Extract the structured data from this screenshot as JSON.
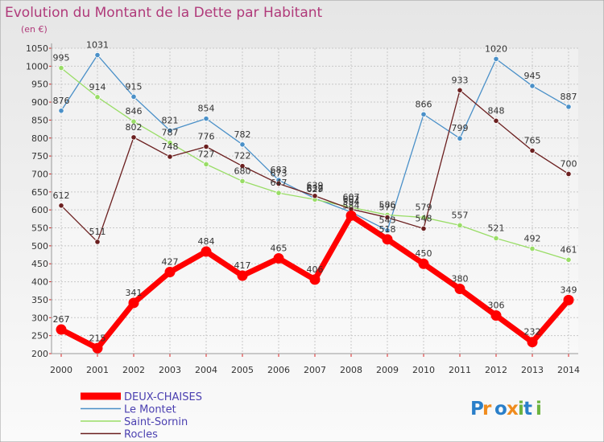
{
  "chart_data": {
    "type": "line",
    "title": "Evolution du Montant de la Dette par Habitant",
    "unit": "(en €)",
    "categories": [
      "2000",
      "2001",
      "2002",
      "2003",
      "2004",
      "2005",
      "2006",
      "2007",
      "2008",
      "2009",
      "2010",
      "2011",
      "2012",
      "2013",
      "2014"
    ],
    "ylim": [
      200,
      1050
    ],
    "yticks": [
      200,
      250,
      300,
      350,
      400,
      450,
      500,
      550,
      600,
      650,
      700,
      750,
      800,
      850,
      900,
      950,
      1000,
      1050
    ],
    "grid": true,
    "legend_position": "bottom-left",
    "series": [
      {
        "name": "DEUX-CHAISES",
        "color": "#ff0000",
        "values": [
          267,
          215,
          341,
          427,
          484,
          417,
          465,
          406,
          584,
          518,
          450,
          380,
          306,
          232,
          349
        ],
        "labels": [
          "267",
          "215",
          "341",
          "427",
          "484",
          "417",
          "465",
          "406",
          "584",
          "518",
          "450",
          "380",
          "306",
          "232",
          "349"
        ]
      },
      {
        "name": "Le Montet",
        "color": "#4a90c8",
        "values": [
          876,
          1031,
          915,
          821,
          854,
          782,
          683,
          632,
          594,
          543,
          866,
          799,
          1020,
          945,
          887
        ],
        "labels": [
          "876",
          "1031",
          "915",
          "821",
          "854",
          "782",
          "683",
          "632",
          "594",
          "543",
          "866",
          "799",
          "1020",
          "945",
          "887"
        ]
      },
      {
        "name": "Saint-Sornin",
        "color": "#99dd66",
        "values": [
          995,
          914,
          846,
          787,
          727,
          680,
          647,
          629,
          607,
          586,
          579,
          557,
          521,
          492,
          461
        ],
        "labels": [
          "995",
          "914",
          "846",
          "787",
          "727",
          "680",
          "647",
          "629",
          "607",
          "586",
          "579",
          "557",
          "521",
          "492",
          "461"
        ]
      },
      {
        "name": "Rocles",
        "color": "#6b1f1f",
        "values": [
          612,
          511,
          802,
          748,
          776,
          722,
          673,
          639,
          602,
          579,
          548,
          933,
          848,
          765,
          700
        ],
        "labels": [
          "612",
          "511",
          "802",
          "748",
          "776",
          "722",
          "673",
          "639",
          "602",
          "579",
          "548",
          "933",
          "848",
          "765",
          "700"
        ]
      }
    ]
  },
  "branding": {
    "logo_text": "Proxiti"
  }
}
